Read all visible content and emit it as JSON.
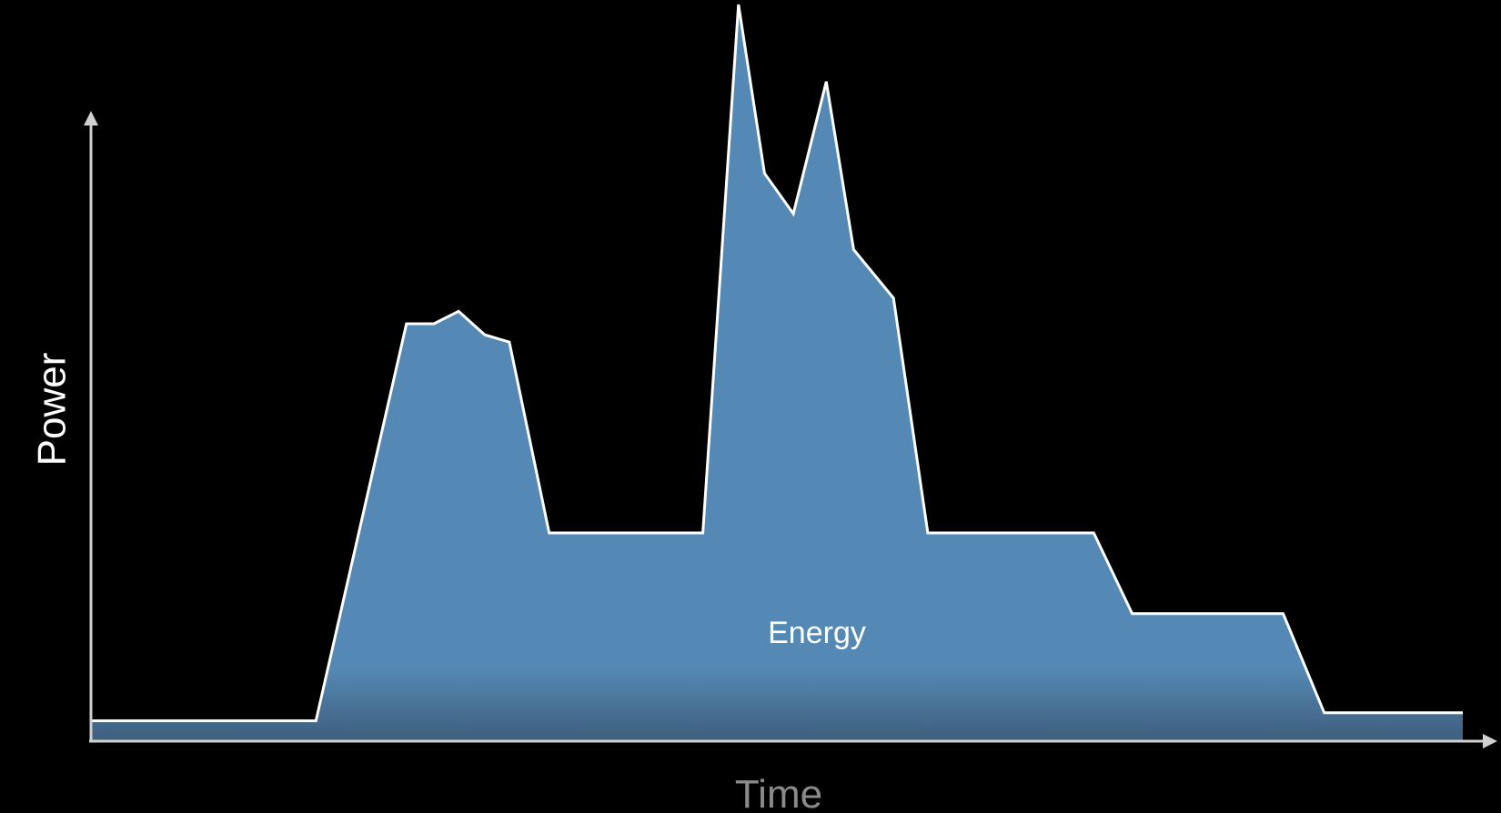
{
  "chart_data": {
    "type": "area",
    "title": "",
    "xlabel": "Time",
    "ylabel": "Power",
    "area_label": "Energy",
    "grid": false,
    "show_ticks": false,
    "legend": "none",
    "xlim": [
      0,
      100
    ],
    "ylim": [
      0,
      100
    ],
    "series": [
      {
        "name": "",
        "points": [
          [
            0,
            2.4
          ],
          [
            16.4,
            2.4
          ],
          [
            23.0,
            56.5
          ],
          [
            25.0,
            56.5
          ],
          [
            26.8,
            58.2
          ],
          [
            28.7,
            55.0
          ],
          [
            30.5,
            54.0
          ],
          [
            33.4,
            28.0
          ],
          [
            44.6,
            28.0
          ],
          [
            47.2,
            100
          ],
          [
            49.1,
            77.0
          ],
          [
            51.2,
            71.5
          ],
          [
            53.6,
            89.5
          ],
          [
            55.6,
            66.6
          ],
          [
            58.5,
            60.0
          ],
          [
            61.0,
            28.0
          ],
          [
            73.1,
            28.0
          ],
          [
            75.9,
            17.0
          ],
          [
            86.9,
            17.0
          ],
          [
            89.9,
            3.5
          ],
          [
            100,
            3.5
          ]
        ]
      }
    ],
    "colors": {
      "fill": "#5589b5",
      "fill_bottom": "#3e5e7c",
      "stroke": "#ffffff",
      "axis": "#d0d0d0",
      "background": "#000000"
    }
  }
}
